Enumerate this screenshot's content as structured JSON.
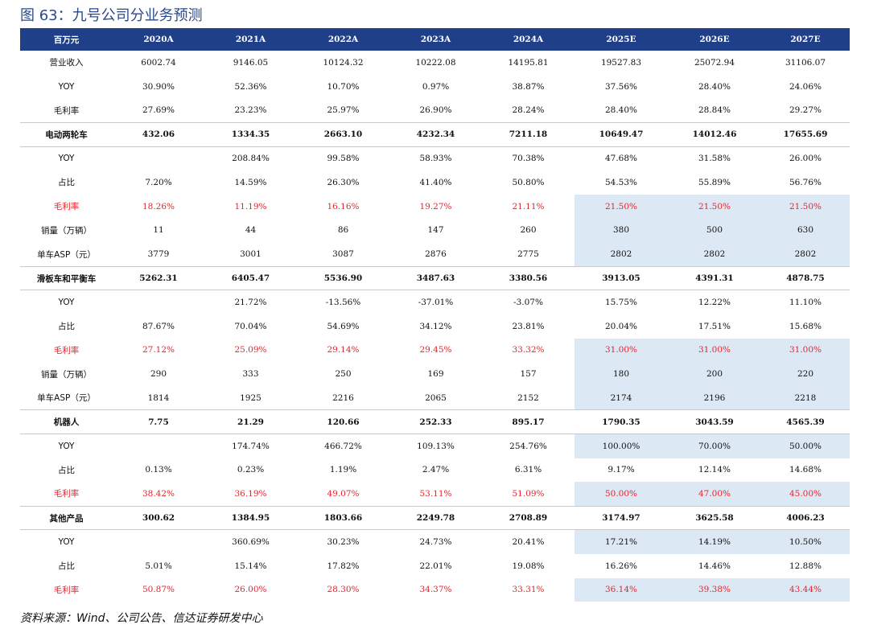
{
  "title": "图 63：九号公司分业务预测",
  "source_note": "资料来源：Wind、公司公告、信达证券研发中心",
  "colors": {
    "header_bg": "#1f3f88",
    "forecast_shade": "#dce8f4",
    "margin_red": "#e8232a",
    "title_blue": "#2b4a8c"
  },
  "header": [
    "百万元",
    "2020A",
    "2021A",
    "2022A",
    "2023A",
    "2024A",
    "2025E",
    "2026E",
    "2027E"
  ],
  "rows": [
    {
      "label": "营业收入",
      "values": [
        "6002.74",
        "9146.05",
        "10124.32",
        "10222.08",
        "14195.81",
        "19527.83",
        "25072.94",
        "31106.07"
      ],
      "style": "normal",
      "shade": false
    },
    {
      "label": "YOY",
      "values": [
        "30.90%",
        "52.36%",
        "10.70%",
        "0.97%",
        "38.87%",
        "37.56%",
        "28.40%",
        "24.06%"
      ],
      "style": "normal",
      "shade": false
    },
    {
      "label": "毛利率",
      "values": [
        "27.69%",
        "23.23%",
        "25.97%",
        "26.90%",
        "28.24%",
        "28.40%",
        "28.84%",
        "29.27%"
      ],
      "style": "normal",
      "shade": false
    },
    {
      "label": "电动两轮车",
      "values": [
        "432.06",
        "1334.35",
        "2663.10",
        "4232.34",
        "7211.18",
        "10649.47",
        "14012.46",
        "17655.69"
      ],
      "style": "sec",
      "shade": false
    },
    {
      "label": "YOY",
      "values": [
        "",
        "208.84%",
        "99.58%",
        "58.93%",
        "70.38%",
        "47.68%",
        "31.58%",
        "26.00%"
      ],
      "style": "normal",
      "shade": false
    },
    {
      "label": "占比",
      "values": [
        "7.20%",
        "14.59%",
        "26.30%",
        "41.40%",
        "50.80%",
        "54.53%",
        "55.89%",
        "56.76%"
      ],
      "style": "normal",
      "shade": false
    },
    {
      "label": "毛利率",
      "values": [
        "18.26%",
        "11.19%",
        "16.16%",
        "19.27%",
        "21.11%",
        "21.50%",
        "21.50%",
        "21.50%"
      ],
      "style": "red",
      "shade": true
    },
    {
      "label": "销量（万辆）",
      "values": [
        "11",
        "44",
        "86",
        "147",
        "260",
        "380",
        "500",
        "630"
      ],
      "style": "normal",
      "shade": true
    },
    {
      "label": "单车ASP（元）",
      "values": [
        "3779",
        "3001",
        "3087",
        "2876",
        "2775",
        "2802",
        "2802",
        "2802"
      ],
      "style": "normal",
      "shade": true
    },
    {
      "label": "滑板车和平衡车",
      "values": [
        "5262.31",
        "6405.47",
        "5536.90",
        "3487.63",
        "3380.56",
        "3913.05",
        "4391.31",
        "4878.75"
      ],
      "style": "sec",
      "shade": false
    },
    {
      "label": "YOY",
      "values": [
        "",
        "21.72%",
        "-13.56%",
        "-37.01%",
        "-3.07%",
        "15.75%",
        "12.22%",
        "11.10%"
      ],
      "style": "normal",
      "shade": false
    },
    {
      "label": "占比",
      "values": [
        "87.67%",
        "70.04%",
        "54.69%",
        "34.12%",
        "23.81%",
        "20.04%",
        "17.51%",
        "15.68%"
      ],
      "style": "normal",
      "shade": false
    },
    {
      "label": "毛利率",
      "values": [
        "27.12%",
        "25.09%",
        "29.14%",
        "29.45%",
        "33.32%",
        "31.00%",
        "31.00%",
        "31.00%"
      ],
      "style": "red",
      "shade": true
    },
    {
      "label": "销量（万辆）",
      "values": [
        "290",
        "333",
        "250",
        "169",
        "157",
        "180",
        "200",
        "220"
      ],
      "style": "normal",
      "shade": true
    },
    {
      "label": "单车ASP（元）",
      "values": [
        "1814",
        "1925",
        "2216",
        "2065",
        "2152",
        "2174",
        "2196",
        "2218"
      ],
      "style": "normal",
      "shade": true
    },
    {
      "label": "机器人",
      "values": [
        "7.75",
        "21.29",
        "120.66",
        "252.33",
        "895.17",
        "1790.35",
        "3043.59",
        "4565.39"
      ],
      "style": "sec",
      "shade": false
    },
    {
      "label": "YOY",
      "values": [
        "",
        "174.74%",
        "466.72%",
        "109.13%",
        "254.76%",
        "100.00%",
        "70.00%",
        "50.00%"
      ],
      "style": "normal",
      "shade": true
    },
    {
      "label": "占比",
      "values": [
        "0.13%",
        "0.23%",
        "1.19%",
        "2.47%",
        "6.31%",
        "9.17%",
        "12.14%",
        "14.68%"
      ],
      "style": "normal",
      "shade": false
    },
    {
      "label": "毛利率",
      "values": [
        "38.42%",
        "36.19%",
        "49.07%",
        "53.11%",
        "51.09%",
        "50.00%",
        "47.00%",
        "45.00%"
      ],
      "style": "red",
      "shade": true
    },
    {
      "label": "其他产品",
      "values": [
        "300.62",
        "1384.95",
        "1803.66",
        "2249.78",
        "2708.89",
        "3174.97",
        "3625.58",
        "4006.23"
      ],
      "style": "sec",
      "shade": false
    },
    {
      "label": "YOY",
      "values": [
        "",
        "360.69%",
        "30.23%",
        "24.73%",
        "20.41%",
        "17.21%",
        "14.19%",
        "10.50%"
      ],
      "style": "normal",
      "shade": true
    },
    {
      "label": "占比",
      "values": [
        "5.01%",
        "15.14%",
        "17.82%",
        "22.01%",
        "19.08%",
        "16.26%",
        "14.46%",
        "12.88%"
      ],
      "style": "normal",
      "shade": false
    },
    {
      "label": "毛利率",
      "values": [
        "50.87%",
        "26.00%",
        "28.30%",
        "34.37%",
        "33.31%",
        "36.14%",
        "39.38%",
        "43.44%"
      ],
      "style": "red",
      "shade": true
    }
  ]
}
